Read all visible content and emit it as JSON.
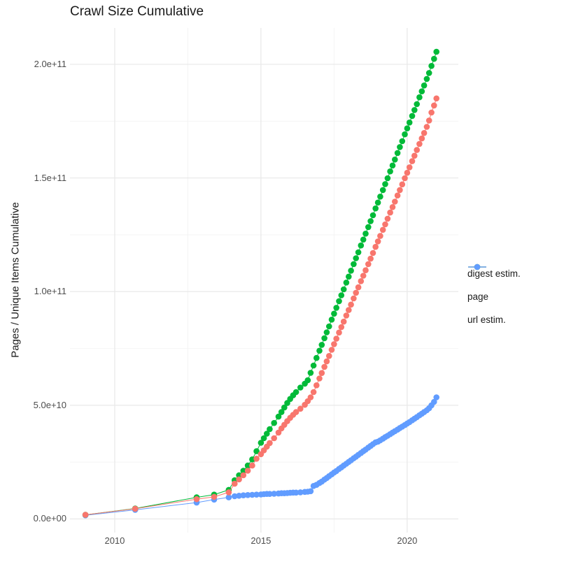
{
  "title": "Crawl Size Cumulative",
  "y_axis": {
    "label": "Pages / Unique Items Cumulative",
    "ticks": [
      "0.0e+00",
      "5.0e+10",
      "1.0e+11",
      "1.5e+11",
      "2.0e+11"
    ],
    "tick_values_billions": [
      0,
      50,
      100,
      150,
      200
    ],
    "minor_tick_values_billions": [
      25,
      75,
      125,
      175
    ]
  },
  "x_axis": {
    "ticks": [
      "2010",
      "2015",
      "2020"
    ],
    "tick_values": [
      2010,
      2015,
      2020
    ],
    "minor_tick_values": [
      2012.5,
      2017.5
    ]
  },
  "legend": {
    "entries": [
      {
        "label": "digest estim.",
        "color": "#F8766D"
      },
      {
        "label": "page",
        "color": "#00BA38"
      },
      {
        "label": "url estim.",
        "color": "#619CFF"
      }
    ]
  },
  "colors": {
    "digest": "#F8766D",
    "page": "#00BA38",
    "url": "#619CFF",
    "grid_major": "#e9e9e9",
    "grid_minor": "#f4f4f4",
    "tick_text": "#4d4d4d",
    "title_text": "#1a1a1a"
  },
  "chart_data": {
    "type": "scatter",
    "title": "Crawl Size Cumulative",
    "xlabel": "",
    "ylabel": "Pages / Unique Items Cumulative",
    "values_unit": "billions (1e9) of pages / unique items",
    "xlim": [
      2008.47,
      2021.75
    ],
    "ylim_billions": [
      -6,
      216
    ],
    "grid": "major+minor",
    "legend_position": "right",
    "x": [
      2009.0,
      2010.7,
      2012.8,
      2013.4,
      2013.9,
      2014.1,
      2014.25,
      2014.4,
      2014.55,
      2014.7,
      2014.85,
      2015.0,
      2015.1,
      2015.2,
      2015.3,
      2015.45,
      2015.6,
      2015.7,
      2015.8,
      2015.9,
      2016.0,
      2016.1,
      2016.2,
      2016.35,
      2016.5,
      2016.6,
      2016.7,
      2016.8,
      2016.9,
      2017.0,
      2017.08,
      2017.17,
      2017.25,
      2017.33,
      2017.42,
      2017.5,
      2017.58,
      2017.67,
      2017.75,
      2017.83,
      2017.92,
      2018.0,
      2018.08,
      2018.17,
      2018.25,
      2018.33,
      2018.42,
      2018.5,
      2018.58,
      2018.67,
      2018.75,
      2018.83,
      2018.92,
      2019.0,
      2019.08,
      2019.17,
      2019.25,
      2019.33,
      2019.42,
      2019.5,
      2019.58,
      2019.67,
      2019.75,
      2019.83,
      2019.92,
      2020.0,
      2020.08,
      2020.17,
      2020.25,
      2020.33,
      2020.42,
      2020.5,
      2020.58,
      2020.67,
      2020.75,
      2020.83,
      2020.92,
      2021.0
    ],
    "series": [
      {
        "name": "url estim.",
        "color": "#619CFF",
        "values": [
          1.6,
          4.0,
          7.2,
          8.5,
          9.5,
          10.0,
          10.2,
          10.4,
          10.5,
          10.6,
          10.7,
          10.8,
          10.9,
          11.0,
          11.0,
          11.1,
          11.2,
          11.3,
          11.3,
          11.4,
          11.5,
          11.6,
          11.6,
          11.7,
          11.9,
          12.0,
          12.2,
          14.5,
          15.0,
          15.8,
          16.4,
          17.3,
          18.0,
          18.8,
          19.6,
          20.4,
          21.1,
          22.0,
          22.7,
          23.5,
          24.3,
          25.1,
          25.8,
          26.7,
          27.4,
          28.2,
          29.0,
          29.8,
          30.5,
          31.4,
          32.1,
          32.9,
          33.7,
          34.0,
          34.6,
          35.3,
          36.0,
          36.6,
          37.3,
          38.0,
          38.6,
          39.3,
          40.0,
          40.6,
          41.3,
          42.0,
          42.6,
          43.4,
          44.1,
          44.8,
          45.6,
          46.3,
          47.0,
          47.8,
          48.7,
          50.0,
          51.5,
          53.5
        ]
      },
      {
        "name": "page",
        "color": "#00BA38",
        "values": [
          1.8,
          4.6,
          9.5,
          10.7,
          12.8,
          17.0,
          19.2,
          21.2,
          23.5,
          26.2,
          29.8,
          33.5,
          35.5,
          37.5,
          39.5,
          42.2,
          45.0,
          47.0,
          49.0,
          51.0,
          52.8,
          54.4,
          55.8,
          57.8,
          59.5,
          61.0,
          64.3,
          67.5,
          70.8,
          74.0,
          76.6,
          79.5,
          82.1,
          84.7,
          87.7,
          90.3,
          92.9,
          95.8,
          98.4,
          101.0,
          104.0,
          106.6,
          109.2,
          112.1,
          114.7,
          117.3,
          120.3,
          122.9,
          125.5,
          128.4,
          131.0,
          133.6,
          136.6,
          139.2,
          141.8,
          144.7,
          147.3,
          149.9,
          152.9,
          155.5,
          158.1,
          161.0,
          163.6,
          166.2,
          169.2,
          171.8,
          174.4,
          177.3,
          179.9,
          182.5,
          185.5,
          188.1,
          190.7,
          193.6,
          196.2,
          199.3,
          202.4,
          205.5
        ]
      },
      {
        "name": "digest estim.",
        "color": "#F8766D",
        "values": [
          1.8,
          4.5,
          8.7,
          9.7,
          11.7,
          15.5,
          17.4,
          19.2,
          21.2,
          23.5,
          26.5,
          28.5,
          30.2,
          31.8,
          33.4,
          35.5,
          38.0,
          39.8,
          41.4,
          43.0,
          44.5,
          45.8,
          47.0,
          48.5,
          50.2,
          51.8,
          53.5,
          55.8,
          58.8,
          61.8,
          64.2,
          66.9,
          69.3,
          71.7,
          74.4,
          76.9,
          79.3,
          82.0,
          84.4,
          86.8,
          89.5,
          91.9,
          94.3,
          97.0,
          99.5,
          101.9,
          104.6,
          107.0,
          109.4,
          112.1,
          114.5,
          117.0,
          119.7,
          122.1,
          124.5,
          127.2,
          129.6,
          132.1,
          134.8,
          137.2,
          139.6,
          142.3,
          144.7,
          147.2,
          149.9,
          152.3,
          154.7,
          157.4,
          159.8,
          162.3,
          165.0,
          167.4,
          169.8,
          172.5,
          175.3,
          178.8,
          181.9,
          185.0
        ]
      }
    ]
  }
}
